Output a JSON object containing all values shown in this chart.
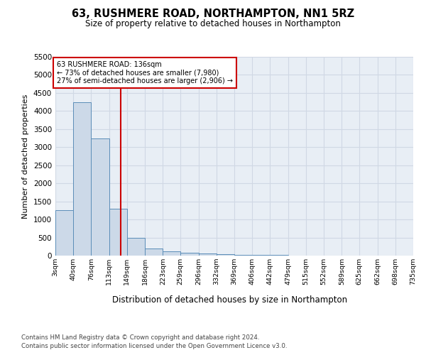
{
  "title": "63, RUSHMERE ROAD, NORTHAMPTON, NN1 5RZ",
  "subtitle": "Size of property relative to detached houses in Northampton",
  "xlabel": "Distribution of detached houses by size in Northampton",
  "ylabel": "Number of detached properties",
  "footer_line1": "Contains HM Land Registry data © Crown copyright and database right 2024.",
  "footer_line2": "Contains public sector information licensed under the Open Government Licence v3.0.",
  "annotation_line1": "63 RUSHMERE ROAD: 136sqm",
  "annotation_line2": "← 73% of detached houses are smaller (7,980)",
  "annotation_line3": "27% of semi-detached houses are larger (2,906) →",
  "property_size": 136,
  "bar_color": "#ccd9e8",
  "bar_edge_color": "#5b8db8",
  "red_line_color": "#cc0000",
  "grid_color": "#d0d8e4",
  "background_color": "#e8eef5",
  "bins": [
    3,
    40,
    76,
    113,
    149,
    186,
    223,
    259,
    296,
    332,
    369,
    406,
    442,
    479,
    515,
    552,
    589,
    625,
    662,
    698,
    735
  ],
  "bin_labels": [
    "3sqm",
    "40sqm",
    "76sqm",
    "113sqm",
    "149sqm",
    "186sqm",
    "223sqm",
    "259sqm",
    "296sqm",
    "332sqm",
    "369sqm",
    "406sqm",
    "442sqm",
    "479sqm",
    "515sqm",
    "552sqm",
    "589sqm",
    "625sqm",
    "662sqm",
    "698sqm",
    "735sqm"
  ],
  "values": [
    1250,
    4250,
    3250,
    1300,
    500,
    200,
    110,
    75,
    55,
    35,
    20,
    15,
    10,
    8,
    5,
    3,
    2,
    1,
    1,
    0
  ],
  "ylim": [
    0,
    5500
  ],
  "yticks": [
    0,
    500,
    1000,
    1500,
    2000,
    2500,
    3000,
    3500,
    4000,
    4500,
    5000,
    5500
  ]
}
